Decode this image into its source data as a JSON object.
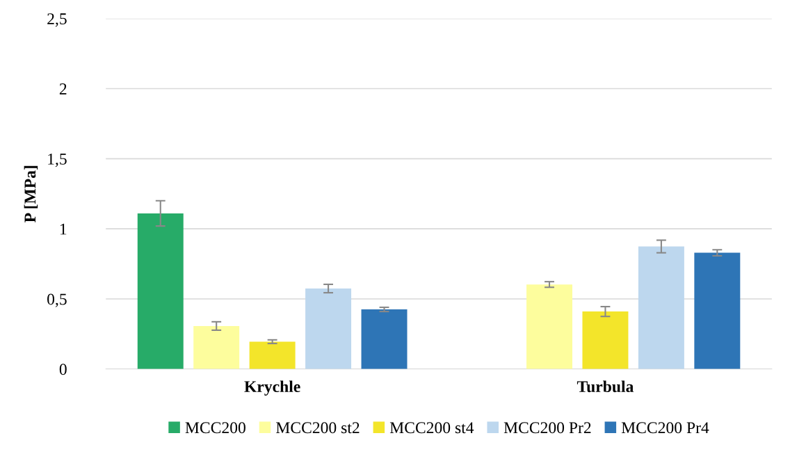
{
  "chart_data": {
    "type": "bar",
    "ylabel": "P [MPa]",
    "categories": [
      "Krychle",
      "Turbula"
    ],
    "series": [
      {
        "name": "MCC200",
        "color": "#27ab68",
        "values": [
          1.11,
          null
        ],
        "errors": [
          0.09,
          null
        ]
      },
      {
        "name": "MCC200 st2",
        "color": "#fdfd9d",
        "values": [
          0.307,
          0.603
        ],
        "errors": [
          0.03,
          0.02
        ]
      },
      {
        "name": "MCC200 st4",
        "color": "#f3e52a",
        "values": [
          0.195,
          0.41
        ],
        "errors": [
          0.013,
          0.035
        ]
      },
      {
        "name": "MCC200 Pr2",
        "color": "#bdd7ee",
        "values": [
          0.574,
          0.874
        ],
        "errors": [
          0.03,
          0.045
        ]
      },
      {
        "name": "MCC200 Pr4",
        "color": "#2e75b6",
        "values": [
          0.425,
          0.829
        ],
        "errors": [
          0.015,
          0.022
        ]
      }
    ],
    "ylim": [
      0,
      2.5
    ],
    "yticks": [
      0,
      {
        "value": 0.5,
        "label": "0,5"
      },
      1,
      {
        "value": 1.5,
        "label": "1,5"
      },
      2,
      {
        "value": 2.5,
        "label": "2,5"
      }
    ],
    "grid": "y",
    "legend": "bottom"
  }
}
